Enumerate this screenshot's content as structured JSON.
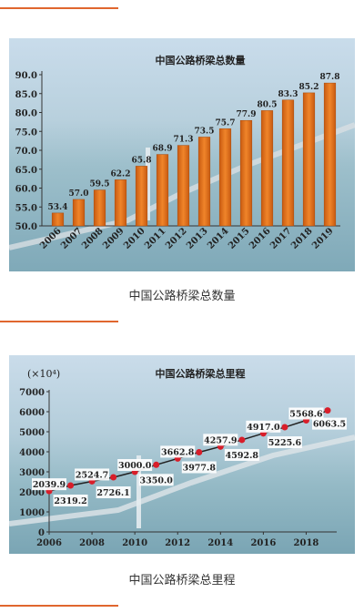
{
  "colors": {
    "accent_line": "#e0662e",
    "bar": "#e8761a",
    "dot": "#d81e2a",
    "sky": "#c9dceb",
    "sea": "#8ab2c2"
  },
  "captions": {
    "top": "中国公路桥梁总数量",
    "bottom": "中国公路桥梁总里程"
  },
  "chart_data": [
    {
      "type": "bar",
      "title": "中国公路桥梁总数量",
      "xlabel": "",
      "ylabel": "",
      "categories": [
        "2006",
        "2007",
        "2008",
        "2009",
        "2010",
        "2011",
        "2012",
        "2013",
        "2014",
        "2015",
        "2016",
        "2017",
        "2018",
        "2019"
      ],
      "values": [
        53.4,
        57.0,
        59.5,
        62.2,
        65.8,
        68.9,
        71.3,
        73.5,
        75.7,
        77.9,
        80.5,
        83.3,
        85.2,
        87.8
      ],
      "value_labels": [
        "53.4",
        "57.0",
        "59.5",
        "62.2",
        "65.8",
        "68.9",
        "71.3",
        "73.5",
        "75.7",
        "77.9",
        "80.5",
        "83.3",
        "85.2",
        "87.8"
      ],
      "yticks": [
        "50.0",
        "55.0",
        "60.0",
        "65.0",
        "70.0",
        "75.0",
        "80.0",
        "85.0",
        "90.0"
      ],
      "ylim": [
        50,
        90
      ],
      "grid": false
    },
    {
      "type": "line",
      "title": "中国公路桥梁总里程",
      "unit_label": "(×10⁴)",
      "xlabel": "",
      "ylabel": "",
      "x": [
        2006,
        2007,
        2008,
        2009,
        2010,
        2011,
        2012,
        2013,
        2014,
        2015,
        2016,
        2017,
        2018,
        2019
      ],
      "y": [
        2039.9,
        2319.2,
        2524.7,
        2726.1,
        3000.0,
        3350.0,
        3662.8,
        3977.8,
        4257.9,
        4592.8,
        4917.0,
        5225.6,
        5568.6,
        6063.5
      ],
      "value_labels": [
        "2039.9",
        "2319.2",
        "2524.7",
        "2726.1",
        "3000.0",
        "3350.0",
        "3662.8",
        "3977.8",
        "4257.9",
        "4592.8",
        "4917.0",
        "5225.6",
        "5568.6",
        "6063.5"
      ],
      "xticks": [
        "2006",
        "2008",
        "2010",
        "2012",
        "2014",
        "2016",
        "2018"
      ],
      "yticks": [
        "0",
        "1000",
        "2000",
        "3000",
        "4000",
        "5000",
        "6000",
        "7000"
      ],
      "xlim": [
        2006,
        2019
      ],
      "ylim": [
        0,
        7000
      ],
      "grid": false
    }
  ]
}
